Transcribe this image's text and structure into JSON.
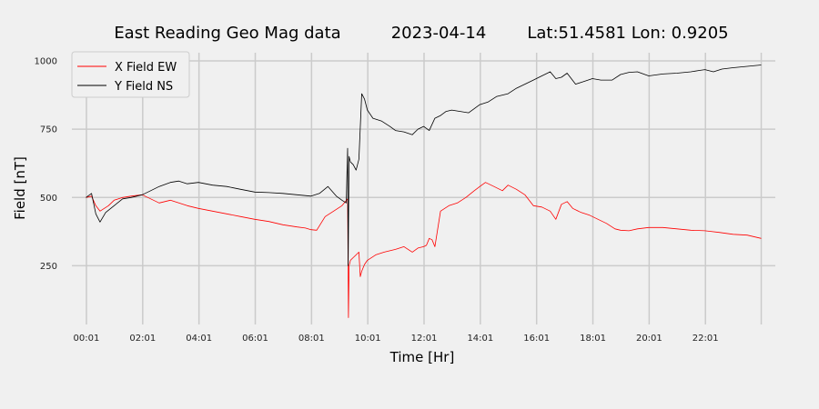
{
  "chart_data": {
    "type": "line",
    "title": {
      "main": "East Reading Geo Mag data",
      "date": "2023-04-14",
      "location": "Lat:51.4581  Lon: 0.9205"
    },
    "xlabel": "Time  [Hr]",
    "ylabel": "Field  [nT]",
    "xlim": [
      -0.5,
      24.5
    ],
    "ylim": [
      35,
      1030
    ],
    "x_ticks": [
      {
        "value": 0.0167,
        "label": "00:01"
      },
      {
        "value": 2.0167,
        "label": "02:01"
      },
      {
        "value": 4.0167,
        "label": "04:01"
      },
      {
        "value": 6.0167,
        "label": "06:01"
      },
      {
        "value": 8.0167,
        "label": "08:01"
      },
      {
        "value": 10.0167,
        "label": "10:01"
      },
      {
        "value": 12.0167,
        "label": "12:01"
      },
      {
        "value": 14.0167,
        "label": "14:01"
      },
      {
        "value": 16.0167,
        "label": "16:01"
      },
      {
        "value": 18.0167,
        "label": "18:01"
      },
      {
        "value": 20.0167,
        "label": "20:01"
      },
      {
        "value": 22.0167,
        "label": "22:01"
      }
    ],
    "x_gridlines": [
      0.0167,
      2.0167,
      4.0167,
      6.0167,
      8.0167,
      10.0167,
      12.0167,
      14.0167,
      16.0167,
      18.0167,
      20.0167,
      22.0167,
      24.0
    ],
    "y_ticks": [
      250,
      500,
      750,
      1000
    ],
    "grid": true,
    "legend_position": "top-left",
    "colors": {
      "background": "#f0f0f0",
      "grid": "#cbcbcb",
      "x_series": "#ff0000",
      "y_series": "#000000"
    },
    "series": [
      {
        "name": "X Field EW",
        "color": "#ff0000",
        "x": [
          0.0,
          0.2,
          0.35,
          0.5,
          0.8,
          1.0,
          1.3,
          1.6,
          2.0,
          2.3,
          2.6,
          3.0,
          3.3,
          3.6,
          4.0,
          4.5,
          5.0,
          5.5,
          6.0,
          6.5,
          7.0,
          7.5,
          7.8,
          8.0,
          8.2,
          8.5,
          8.8,
          9.1,
          9.3,
          9.33,
          9.35,
          9.4,
          9.5,
          9.6,
          9.7,
          9.75,
          9.8,
          9.9,
          10.0,
          10.3,
          10.6,
          11.0,
          11.3,
          11.6,
          11.8,
          12.0,
          12.1,
          12.2,
          12.3,
          12.4,
          12.6,
          12.9,
          13.2,
          13.5,
          13.8,
          14.0,
          14.2,
          14.5,
          14.8,
          15.0,
          15.3,
          15.6,
          15.9,
          16.2,
          16.5,
          16.7,
          16.9,
          17.1,
          17.3,
          17.6,
          17.9,
          18.2,
          18.5,
          18.8,
          19.0,
          19.3,
          19.6,
          20.0,
          20.5,
          21.0,
          21.5,
          22.0,
          22.5,
          23.0,
          23.5,
          24.0
        ],
        "y": [
          500,
          505,
          470,
          450,
          470,
          490,
          500,
          505,
          510,
          495,
          480,
          490,
          480,
          470,
          460,
          450,
          440,
          430,
          420,
          412,
          400,
          392,
          388,
          382,
          380,
          430,
          450,
          470,
          495,
          60,
          250,
          270,
          280,
          290,
          300,
          210,
          230,
          255,
          270,
          290,
          300,
          310,
          320,
          300,
          315,
          320,
          325,
          350,
          345,
          320,
          450,
          470,
          480,
          500,
          525,
          540,
          555,
          540,
          525,
          545,
          530,
          510,
          470,
          465,
          450,
          420,
          475,
          485,
          460,
          445,
          435,
          420,
          405,
          385,
          380,
          378,
          385,
          390,
          390,
          385,
          380,
          378,
          372,
          365,
          362,
          350
        ]
      },
      {
        "name": "Y Field NS",
        "color": "#000000",
        "x": [
          0.0,
          0.2,
          0.35,
          0.5,
          0.7,
          1.0,
          1.3,
          1.6,
          2.0,
          2.3,
          2.6,
          3.0,
          3.3,
          3.6,
          4.0,
          4.5,
          5.0,
          5.5,
          6.0,
          6.5,
          7.0,
          7.5,
          8.0,
          8.3,
          8.6,
          8.9,
          9.1,
          9.25,
          9.3,
          9.32,
          9.35,
          9.4,
          9.5,
          9.6,
          9.7,
          9.8,
          9.9,
          10.0,
          10.2,
          10.5,
          10.8,
          11.0,
          11.3,
          11.6,
          11.8,
          12.0,
          12.2,
          12.4,
          12.6,
          12.8,
          13.0,
          13.3,
          13.6,
          14.0,
          14.3,
          14.6,
          15.0,
          15.3,
          15.6,
          15.9,
          16.2,
          16.5,
          16.7,
          16.9,
          17.1,
          17.4,
          17.7,
          18.0,
          18.3,
          18.7,
          19.0,
          19.3,
          19.6,
          20.0,
          20.5,
          21.0,
          21.5,
          21.8,
          22.0,
          22.3,
          22.6,
          23.0,
          23.5,
          24.0
        ],
        "y": [
          500,
          515,
          440,
          410,
          445,
          470,
          495,
          500,
          510,
          525,
          540,
          555,
          560,
          550,
          555,
          545,
          540,
          530,
          520,
          518,
          515,
          510,
          505,
          515,
          540,
          505,
          490,
          480,
          680,
          250,
          650,
          630,
          620,
          600,
          640,
          880,
          860,
          820,
          790,
          780,
          760,
          745,
          740,
          730,
          750,
          760,
          745,
          790,
          800,
          815,
          820,
          815,
          810,
          840,
          850,
          870,
          880,
          900,
          915,
          930,
          945,
          960,
          935,
          940,
          955,
          915,
          925,
          935,
          930,
          930,
          950,
          958,
          960,
          945,
          952,
          955,
          960,
          965,
          968,
          960,
          970,
          975,
          980,
          985
        ]
      }
    ]
  }
}
